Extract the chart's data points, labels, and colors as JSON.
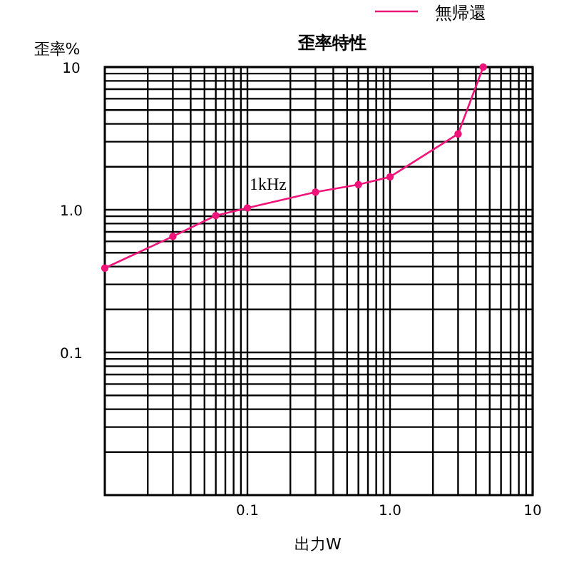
{
  "chart_data": {
    "type": "line",
    "title": "歪率特性",
    "xlabel": "出力W",
    "ylabel": "歪率%",
    "log": "xy",
    "grid": true,
    "legend": "top right",
    "marker": "circle",
    "line_style": "solid",
    "annotations": [
      "1kHz"
    ],
    "xlim": [
      0.01,
      10
    ],
    "ylim": [
      0.01,
      10
    ],
    "xticks": [
      {
        "value": 0.02,
        "label": null
      },
      {
        "value": 0.03,
        "label": null
      },
      {
        "value": 0.04,
        "label": null
      },
      {
        "value": 0.05,
        "label": null
      },
      {
        "value": 0.06,
        "label": null
      },
      {
        "value": 0.07,
        "label": null
      },
      {
        "value": 0.08,
        "label": null
      },
      {
        "value": 0.09,
        "label": null
      },
      {
        "value": 0.1,
        "label": "0.1"
      },
      {
        "value": 0.2,
        "label": null
      },
      {
        "value": 0.3,
        "label": null
      },
      {
        "value": 0.4,
        "label": null
      },
      {
        "value": 0.5,
        "label": null
      },
      {
        "value": 0.6,
        "label": null
      },
      {
        "value": 0.7,
        "label": null
      },
      {
        "value": 0.8,
        "label": null
      },
      {
        "value": 0.9,
        "label": null
      },
      {
        "value": 1,
        "label": "1.0"
      },
      {
        "value": 2,
        "label": null
      },
      {
        "value": 3,
        "label": null
      },
      {
        "value": 4,
        "label": null
      },
      {
        "value": 5,
        "label": null
      },
      {
        "value": 6,
        "label": null
      },
      {
        "value": 7,
        "label": null
      },
      {
        "value": 8,
        "label": null
      },
      {
        "value": 9,
        "label": null
      },
      {
        "value": 10,
        "label": "10"
      }
    ],
    "yticks": [
      {
        "value": 0.02,
        "label": null
      },
      {
        "value": 0.03,
        "label": null
      },
      {
        "value": 0.04,
        "label": null
      },
      {
        "value": 0.05,
        "label": null
      },
      {
        "value": 0.06,
        "label": null
      },
      {
        "value": 0.07,
        "label": null
      },
      {
        "value": 0.08,
        "label": null
      },
      {
        "value": 0.09,
        "label": null
      },
      {
        "value": 0.1,
        "label": "0.1"
      },
      {
        "value": 0.2,
        "label": null
      },
      {
        "value": 0.3,
        "label": null
      },
      {
        "value": 0.4,
        "label": null
      },
      {
        "value": 0.5,
        "label": null
      },
      {
        "value": 0.6,
        "label": null
      },
      {
        "value": 0.7,
        "label": null
      },
      {
        "value": 0.8,
        "label": null
      },
      {
        "value": 0.9,
        "label": null
      },
      {
        "value": 1,
        "label": "1.0"
      },
      {
        "value": 2,
        "label": null
      },
      {
        "value": 3,
        "label": null
      },
      {
        "value": 4,
        "label": null
      },
      {
        "value": 5,
        "label": null
      },
      {
        "value": 6,
        "label": null
      },
      {
        "value": 7,
        "label": null
      },
      {
        "value": 8,
        "label": null
      },
      {
        "value": 9,
        "label": null
      },
      {
        "value": 10,
        "label": "10"
      }
    ],
    "x": [
      0.01,
      0.03,
      0.06,
      0.1,
      0.3,
      0.6,
      1,
      3,
      4.5
    ],
    "series": [
      {
        "name": "無帰還",
        "color": "#f0147a",
        "values": [
          0.39,
          0.65,
          0.91,
          1.03,
          1.33,
          1.5,
          1.7,
          3.4,
          10
        ]
      }
    ]
  }
}
